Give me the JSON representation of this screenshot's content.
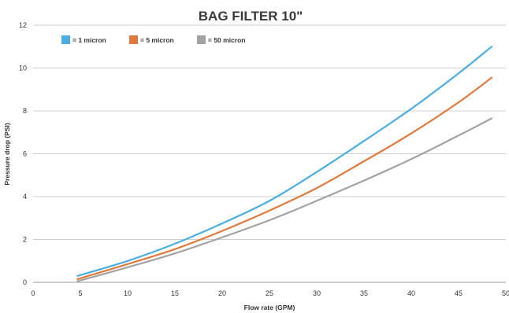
{
  "chart_data": {
    "type": "line",
    "title": "BAG FILTER 10\"",
    "xlabel": "Flow rate (GPM)",
    "ylabel": "Pressure drop (PSI)",
    "xlim": [
      0,
      50
    ],
    "ylim": [
      0,
      12
    ],
    "xticks": [
      "0",
      "5",
      "10",
      "15",
      "20",
      "25",
      "30",
      "35",
      "40",
      "45",
      "50"
    ],
    "yticks": [
      "0",
      "2",
      "4",
      "6",
      "8",
      "10",
      "12"
    ],
    "grid": "horizontal",
    "legend_position": "top-left",
    "series": [
      {
        "name": "= 1 micron",
        "color": "#4aafe0",
        "x": [
          4.7,
          10,
          15,
          20,
          25,
          30,
          35,
          40,
          45,
          48.5
        ],
        "values": [
          0.3,
          1.0,
          1.8,
          2.75,
          3.8,
          5.15,
          6.6,
          8.1,
          9.75,
          11.0
        ]
      },
      {
        "name": "= 5 micron",
        "color": "#e07a3c",
        "x": [
          4.7,
          10,
          15,
          20,
          25,
          30,
          35,
          40,
          45,
          48.5
        ],
        "values": [
          0.15,
          0.85,
          1.55,
          2.4,
          3.35,
          4.4,
          5.65,
          6.95,
          8.4,
          9.55
        ]
      },
      {
        "name": "= 50 micron",
        "color": "#a3a3a3",
        "x": [
          4.7,
          10,
          15,
          20,
          25,
          30,
          35,
          40,
          45,
          48.5
        ],
        "values": [
          0.05,
          0.7,
          1.35,
          2.1,
          2.9,
          3.8,
          4.75,
          5.75,
          6.85,
          7.65
        ]
      }
    ]
  }
}
